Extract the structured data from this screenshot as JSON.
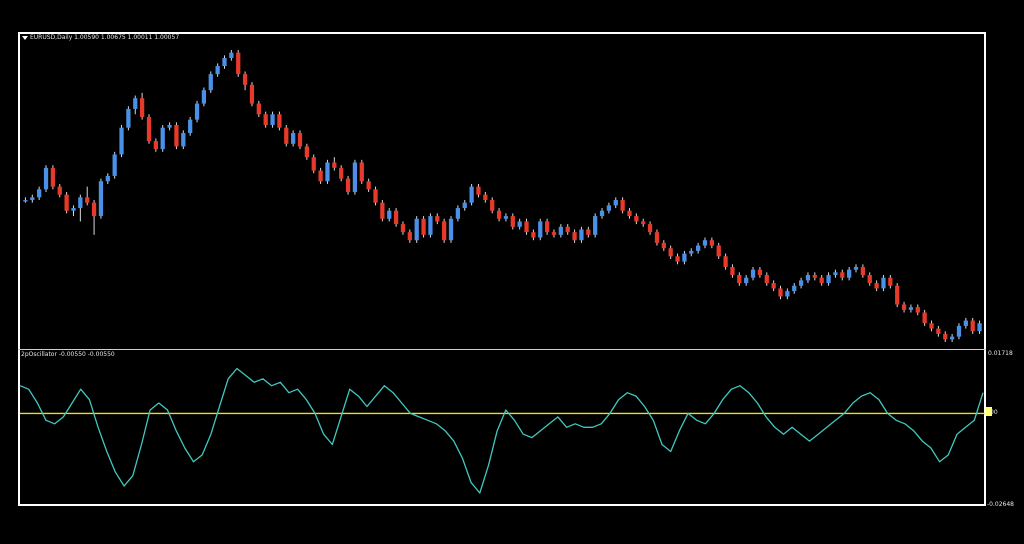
{
  "main_chart": {
    "title": "EURUSD,Daily  1.00590 1.00675 1.00011 1.00057",
    "up_color": "#4a90e8",
    "down_color": "#e83a2a",
    "wick_color": "#d9d9d9",
    "candles": [
      [
        86,
        86,
        84,
        88
      ],
      [
        86,
        88,
        84,
        90
      ],
      [
        88,
        94,
        86,
        96
      ],
      [
        94,
        110,
        92,
        112
      ],
      [
        110,
        96,
        94,
        112
      ],
      [
        96,
        90,
        88,
        98
      ],
      [
        90,
        78,
        76,
        92
      ],
      [
        78,
        80,
        74,
        82
      ],
      [
        80,
        88,
        70,
        90
      ],
      [
        88,
        84,
        82,
        96
      ],
      [
        84,
        74,
        60,
        86
      ],
      [
        74,
        100,
        72,
        102
      ],
      [
        100,
        104,
        98,
        106
      ],
      [
        104,
        120,
        102,
        122
      ],
      [
        120,
        140,
        118,
        142
      ],
      [
        140,
        154,
        138,
        156
      ],
      [
        154,
        162,
        150,
        164
      ],
      [
        162,
        148,
        146,
        166
      ],
      [
        148,
        130,
        128,
        150
      ],
      [
        130,
        124,
        122,
        132
      ],
      [
        124,
        140,
        122,
        142
      ],
      [
        140,
        142,
        138,
        144
      ],
      [
        142,
        126,
        124,
        144
      ],
      [
        126,
        136,
        124,
        138
      ],
      [
        136,
        146,
        134,
        148
      ],
      [
        146,
        158,
        144,
        160
      ],
      [
        158,
        168,
        156,
        170
      ],
      [
        168,
        180,
        166,
        182
      ],
      [
        180,
        186,
        178,
        188
      ],
      [
        186,
        192,
        184,
        194
      ],
      [
        192,
        196,
        190,
        198
      ],
      [
        196,
        180,
        178,
        198
      ],
      [
        180,
        172,
        168,
        182
      ],
      [
        172,
        158,
        156,
        174
      ],
      [
        158,
        150,
        148,
        160
      ],
      [
        150,
        142,
        140,
        152
      ],
      [
        142,
        150,
        140,
        152
      ],
      [
        150,
        140,
        138,
        152
      ],
      [
        140,
        128,
        126,
        142
      ],
      [
        128,
        136,
        126,
        138
      ],
      [
        136,
        126,
        124,
        138
      ],
      [
        126,
        118,
        116,
        128
      ],
      [
        118,
        108,
        106,
        120
      ],
      [
        108,
        100,
        98,
        110
      ],
      [
        100,
        114,
        98,
        116
      ],
      [
        114,
        110,
        108,
        118
      ],
      [
        110,
        102,
        100,
        112
      ],
      [
        102,
        92,
        90,
        104
      ],
      [
        92,
        114,
        90,
        116
      ],
      [
        114,
        100,
        98,
        116
      ],
      [
        100,
        94,
        92,
        102
      ],
      [
        94,
        84,
        82,
        96
      ],
      [
        84,
        72,
        70,
        86
      ],
      [
        72,
        78,
        70,
        80
      ],
      [
        78,
        68,
        66,
        80
      ],
      [
        68,
        62,
        60,
        70
      ],
      [
        62,
        56,
        54,
        64
      ],
      [
        56,
        72,
        54,
        74
      ],
      [
        72,
        60,
        58,
        74
      ],
      [
        60,
        74,
        58,
        76
      ],
      [
        74,
        70,
        68,
        76
      ],
      [
        70,
        56,
        54,
        72
      ],
      [
        56,
        72,
        54,
        74
      ],
      [
        72,
        80,
        70,
        82
      ],
      [
        80,
        84,
        78,
        86
      ],
      [
        84,
        96,
        82,
        98
      ],
      [
        96,
        90,
        88,
        98
      ],
      [
        90,
        86,
        84,
        92
      ],
      [
        86,
        78,
        76,
        88
      ],
      [
        78,
        72,
        70,
        80
      ],
      [
        72,
        74,
        70,
        76
      ],
      [
        74,
        66,
        64,
        76
      ],
      [
        66,
        70,
        64,
        72
      ],
      [
        70,
        62,
        60,
        72
      ],
      [
        62,
        58,
        56,
        64
      ],
      [
        58,
        70,
        56,
        72
      ],
      [
        70,
        62,
        60,
        72
      ],
      [
        62,
        60,
        58,
        64
      ],
      [
        60,
        66,
        58,
        68
      ],
      [
        66,
        62,
        60,
        68
      ],
      [
        62,
        56,
        54,
        64
      ],
      [
        56,
        64,
        54,
        66
      ],
      [
        64,
        60,
        58,
        66
      ],
      [
        60,
        74,
        58,
        76
      ],
      [
        74,
        78,
        72,
        80
      ],
      [
        78,
        82,
        76,
        84
      ],
      [
        82,
        86,
        80,
        88
      ],
      [
        86,
        78,
        76,
        88
      ],
      [
        78,
        74,
        72,
        80
      ],
      [
        74,
        70,
        68,
        76
      ],
      [
        70,
        68,
        66,
        72
      ],
      [
        68,
        62,
        60,
        70
      ],
      [
        62,
        54,
        52,
        64
      ],
      [
        54,
        50,
        48,
        56
      ],
      [
        50,
        44,
        42,
        52
      ],
      [
        44,
        40,
        38,
        46
      ],
      [
        40,
        46,
        38,
        48
      ],
      [
        46,
        48,
        44,
        50
      ],
      [
        48,
        52,
        46,
        54
      ],
      [
        52,
        56,
        50,
        58
      ],
      [
        56,
        52,
        50,
        58
      ],
      [
        52,
        44,
        42,
        54
      ],
      [
        44,
        36,
        34,
        46
      ],
      [
        36,
        30,
        28,
        38
      ],
      [
        30,
        24,
        22,
        32
      ],
      [
        24,
        28,
        22,
        30
      ],
      [
        28,
        34,
        26,
        36
      ],
      [
        34,
        30,
        28,
        36
      ],
      [
        30,
        24,
        22,
        32
      ],
      [
        24,
        20,
        18,
        26
      ],
      [
        20,
        14,
        12,
        22
      ],
      [
        14,
        18,
        12,
        20
      ],
      [
        18,
        22,
        16,
        24
      ],
      [
        22,
        26,
        20,
        28
      ],
      [
        26,
        30,
        24,
        32
      ],
      [
        30,
        28,
        26,
        32
      ],
      [
        28,
        24,
        22,
        30
      ],
      [
        24,
        30,
        22,
        32
      ],
      [
        30,
        32,
        28,
        34
      ],
      [
        32,
        28,
        26,
        34
      ],
      [
        28,
        34,
        26,
        36
      ],
      [
        34,
        36,
        32,
        38
      ],
      [
        36,
        30,
        28,
        38
      ],
      [
        30,
        24,
        22,
        32
      ],
      [
        24,
        20,
        18,
        26
      ],
      [
        20,
        28,
        18,
        30
      ],
      [
        28,
        22,
        20,
        30
      ],
      [
        22,
        8,
        6,
        24
      ],
      [
        8,
        4,
        2,
        10
      ],
      [
        4,
        6,
        2,
        8
      ],
      [
        6,
        2,
        0,
        8
      ],
      [
        2,
        -6,
        -8,
        4
      ],
      [
        -6,
        -10,
        -12,
        -4
      ],
      [
        -10,
        -14,
        -16,
        -8
      ],
      [
        -14,
        -18,
        -20,
        -12
      ],
      [
        -18,
        -16,
        -20,
        -14
      ],
      [
        -16,
        -8,
        -18,
        -6
      ],
      [
        -8,
        -4,
        -10,
        -2
      ],
      [
        -4,
        -12,
        -14,
        -2
      ],
      [
        -12,
        -6,
        -14,
        -4
      ]
    ]
  },
  "oscillator": {
    "title": "2pOscillator  -0.00550 -0.00550",
    "line_color": "#40c8c0",
    "zero_color": "#e8e020",
    "tick_top": "0.01718",
    "tick_zero": "00",
    "tick_bottom": "-0.02648",
    "values": [
      0.008,
      0.007,
      0.003,
      -0.002,
      -0.003,
      -0.001,
      0.003,
      0.007,
      0.004,
      -0.004,
      -0.011,
      -0.017,
      -0.021,
      -0.018,
      -0.009,
      0.001,
      0.003,
      0.001,
      -0.005,
      -0.01,
      -0.014,
      -0.012,
      -0.006,
      0.002,
      0.01,
      0.013,
      0.011,
      0.009,
      0.01,
      0.008,
      0.009,
      0.006,
      0.007,
      0.004,
      0.0,
      -0.006,
      -0.009,
      -0.001,
      0.007,
      0.005,
      0.002,
      0.005,
      0.008,
      0.006,
      0.003,
      0.0,
      -0.001,
      -0.002,
      -0.003,
      -0.005,
      -0.008,
      -0.013,
      -0.02,
      -0.023,
      -0.015,
      -0.005,
      0.001,
      -0.002,
      -0.006,
      -0.007,
      -0.005,
      -0.003,
      -0.001,
      -0.004,
      -0.003,
      -0.004,
      -0.004,
      -0.003,
      0.0,
      0.004,
      0.006,
      0.005,
      0.002,
      -0.002,
      -0.009,
      -0.011,
      -0.005,
      0.0,
      -0.002,
      -0.003,
      0.0,
      0.004,
      0.007,
      0.008,
      0.006,
      0.003,
      -0.001,
      -0.004,
      -0.006,
      -0.004,
      -0.006,
      -0.008,
      -0.006,
      -0.004,
      -0.002,
      0.0,
      0.003,
      0.005,
      0.006,
      0.004,
      0.0,
      -0.002,
      -0.003,
      -0.005,
      -0.008,
      -0.01,
      -0.014,
      -0.012,
      -0.006,
      -0.004,
      -0.002,
      0.006
    ]
  }
}
